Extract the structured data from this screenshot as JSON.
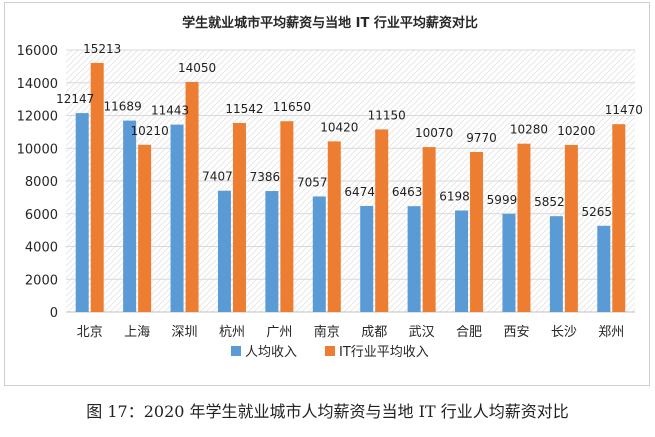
{
  "caption": "图 17：2020 年学生就业城市人均薪资与当地 IT 行业人均薪资对比",
  "chart_data": {
    "type": "bar",
    "title": "学生就业城市平均薪资与当地 IT 行业平均薪资对比",
    "categories": [
      "北京",
      "上海",
      "深圳",
      "杭州",
      "广州",
      "南京",
      "成都",
      "武汉",
      "合肥",
      "西安",
      "长沙",
      "郑州"
    ],
    "series": [
      {
        "name": "人均收入",
        "color": "#5b9bd5",
        "values": [
          12147,
          11689,
          11443,
          7407,
          7386,
          7057,
          6474,
          6463,
          6198,
          5999,
          5852,
          5265
        ]
      },
      {
        "name": "IT行业平均收入",
        "color": "#ed7d31",
        "values": [
          15213,
          10210,
          14050,
          11542,
          11650,
          10420,
          11150,
          10070,
          9770,
          10280,
          10200,
          11470
        ]
      }
    ],
    "yticks": [
      0,
      2000,
      4000,
      6000,
      8000,
      10000,
      12000,
      14000,
      16000
    ],
    "ylim": [
      0,
      16000
    ],
    "grid": true,
    "legend_position": "bottom"
  }
}
